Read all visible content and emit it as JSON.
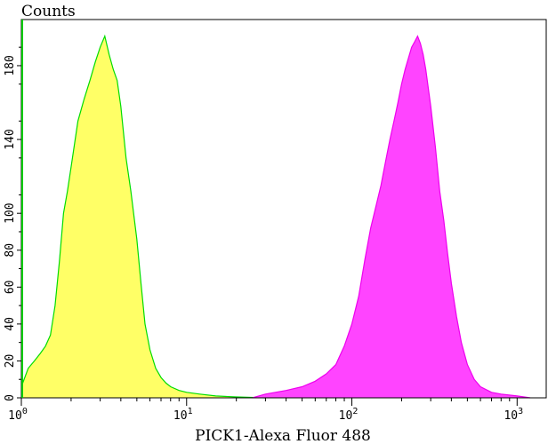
{
  "chart_data": {
    "type": "area",
    "title": "",
    "xlabel": "PICK1-Alexa Fluor 488",
    "ylabel": "Counts",
    "xscale": "log",
    "xlim": [
      1,
      1500
    ],
    "ylim": [
      0,
      205
    ],
    "x_tick_labels": [
      {
        "base": "10",
        "exp": "0",
        "value": 1
      },
      {
        "base": "10",
        "exp": "1",
        "value": 10
      },
      {
        "base": "10",
        "exp": "2",
        "value": 100
      },
      {
        "base": "10",
        "exp": "3",
        "value": 1000
      }
    ],
    "y_ticks": [
      0,
      20,
      40,
      60,
      80,
      100,
      140,
      180
    ],
    "y_tick_labels": [
      "0",
      "20",
      "40",
      "60",
      "80",
      "100",
      "140",
      "180"
    ],
    "grid": false,
    "legend": "none",
    "series": [
      {
        "fill": "#ffff66",
        "stroke": "#00dd00",
        "points": [
          [
            1.0,
            6
          ],
          [
            1.1,
            16
          ],
          [
            1.2,
            20
          ],
          [
            1.3,
            24
          ],
          [
            1.4,
            28
          ],
          [
            1.5,
            34
          ],
          [
            1.6,
            50
          ],
          [
            1.7,
            74
          ],
          [
            1.8,
            100
          ],
          [
            1.9,
            112
          ],
          [
            2.0,
            125
          ],
          [
            2.1,
            138
          ],
          [
            2.2,
            150
          ],
          [
            2.4,
            162
          ],
          [
            2.6,
            172
          ],
          [
            2.8,
            182
          ],
          [
            3.0,
            190
          ],
          [
            3.2,
            196
          ],
          [
            3.4,
            186
          ],
          [
            3.6,
            178
          ],
          [
            3.8,
            172
          ],
          [
            4.0,
            158
          ],
          [
            4.3,
            130
          ],
          [
            4.6,
            112
          ],
          [
            5.0,
            86
          ],
          [
            5.3,
            62
          ],
          [
            5.6,
            40
          ],
          [
            6.0,
            26
          ],
          [
            6.5,
            16
          ],
          [
            7.0,
            11
          ],
          [
            7.5,
            8
          ],
          [
            8.0,
            6
          ],
          [
            9.0,
            4
          ],
          [
            10.0,
            3
          ],
          [
            12.0,
            2
          ],
          [
            15.0,
            1
          ],
          [
            20.0,
            0.5
          ],
          [
            30.0,
            0
          ]
        ]
      },
      {
        "fill": "#ff44ff",
        "stroke": "#ee00ee",
        "points": [
          [
            25,
            0
          ],
          [
            30,
            2
          ],
          [
            40,
            4
          ],
          [
            50,
            6
          ],
          [
            60,
            9
          ],
          [
            70,
            13
          ],
          [
            80,
            18
          ],
          [
            90,
            28
          ],
          [
            100,
            40
          ],
          [
            110,
            55
          ],
          [
            120,
            75
          ],
          [
            130,
            92
          ],
          [
            140,
            104
          ],
          [
            150,
            115
          ],
          [
            160,
            128
          ],
          [
            170,
            140
          ],
          [
            180,
            150
          ],
          [
            190,
            160
          ],
          [
            200,
            170
          ],
          [
            210,
            178
          ],
          [
            220,
            184
          ],
          [
            230,
            190
          ],
          [
            240,
            193
          ],
          [
            250,
            196
          ],
          [
            260,
            192
          ],
          [
            270,
            186
          ],
          [
            280,
            178
          ],
          [
            290,
            168
          ],
          [
            300,
            158
          ],
          [
            320,
            136
          ],
          [
            340,
            112
          ],
          [
            360,
            96
          ],
          [
            380,
            78
          ],
          [
            400,
            62
          ],
          [
            430,
            44
          ],
          [
            460,
            30
          ],
          [
            500,
            18
          ],
          [
            550,
            10
          ],
          [
            600,
            6
          ],
          [
            700,
            3
          ],
          [
            800,
            2
          ],
          [
            1000,
            1
          ],
          [
            1200,
            0
          ]
        ]
      }
    ]
  }
}
